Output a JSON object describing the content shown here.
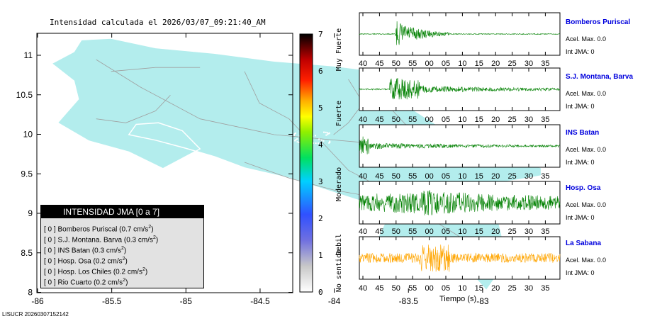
{
  "map": {
    "title": "Intensidad calculada el 2026/03/07_09:21:40_AM",
    "x_ticks": [
      "-86",
      "-85.5",
      "-85",
      "-84.5",
      "-84",
      "-83.5",
      "-83"
    ],
    "y_ticks": [
      "11",
      "10.5",
      "10",
      "9.5",
      "9",
      "8.5",
      "8"
    ],
    "land_color": "#b3eded",
    "road_color": "#a0a0a0"
  },
  "legend": {
    "header": "INTENSIDAD JMA [0 a 7]",
    "rows": [
      {
        "level": "[ 0 ]",
        "station": "Bomberos Puriscal",
        "accel": "(0.7 cm/s",
        "unit_exp": "2",
        "close": ")"
      },
      {
        "level": "[ 0 ]",
        "station": "S.J. Montana. Barva",
        "accel": "(0.3 cm/s",
        "unit_exp": "2",
        "close": ")"
      },
      {
        "level": "[ 0 ]",
        "station": "INS Batan",
        "accel": "(0.3 cm/s",
        "unit_exp": "2",
        "close": ")"
      },
      {
        "level": "[ 0 ]",
        "station": "Hosp. Osa",
        "accel": "(0.2 cm/s",
        "unit_exp": "2",
        "close": ")"
      },
      {
        "level": "[ 0 ]",
        "station": "Hosp. Los Chiles",
        "accel": "(0.2 cm/s",
        "unit_exp": "2",
        "close": ")"
      },
      {
        "level": "[ 0 ]",
        "station": "Rio Cuarto",
        "accel": "(0.2 cm/s",
        "unit_exp": "2",
        "close": ")"
      }
    ]
  },
  "colorbar": {
    "ticks": [
      "7",
      "6",
      "5",
      "4",
      "3",
      "2",
      "1",
      "0"
    ],
    "labels": [
      "Muy Fuerte",
      "Fuerte",
      "Moderado",
      "Debil",
      "No sentido"
    ]
  },
  "stations": [
    {
      "name": "Bomberos Puriscal",
      "accel": "Acel. Max. 0.0",
      "jma": "Int JMA: 0",
      "color": "#008000",
      "amp": 0.55
    },
    {
      "name": "S.J. Montana, Barva",
      "accel": "Acel. Max. 0.0",
      "jma": "Int JMA: 0",
      "color": "#008000",
      "amp": 0.6
    },
    {
      "name": "INS Batan",
      "accel": "Acel. Max. 0.0",
      "jma": "Int JMA: 0",
      "color": "#008000",
      "amp": 0.5
    },
    {
      "name": "Hosp. Osa",
      "accel": "Acel. Max. 0.0",
      "jma": "Int JMA: 0",
      "color": "#008000",
      "amp": 0.9
    },
    {
      "name": "La Sabana",
      "accel": "Acel. Max. 0.0",
      "jma": "Int JMA: 0",
      "color": "#ffa500",
      "amp": 0.75
    }
  ],
  "time_ticks": [
    "40",
    "45",
    "50",
    "55",
    "00",
    "05",
    "10",
    "15",
    "20",
    "25",
    "30",
    "35"
  ],
  "time_label": "Tiempo (s)",
  "footer_id": "LISUCR 20260307152142"
}
